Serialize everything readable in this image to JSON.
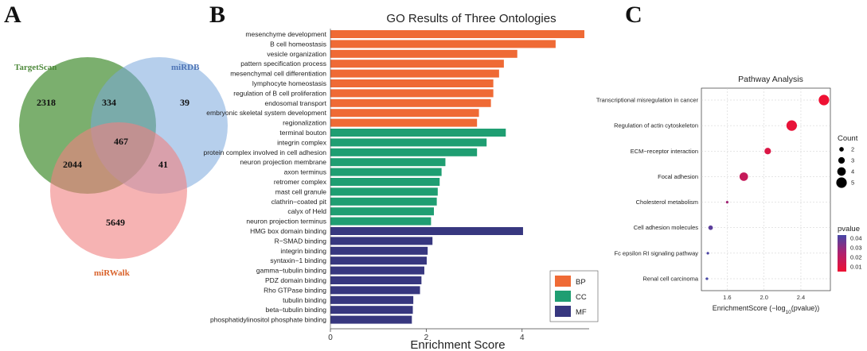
{
  "panels": {
    "a": "A",
    "b": "B",
    "c": "C"
  },
  "venn": {
    "sets": [
      {
        "name": "TargetScan",
        "color": "#5e9e4e"
      },
      {
        "name": "miRDB",
        "color": "#7aa8dc"
      },
      {
        "name": "miRWalk",
        "color": "#e8713a"
      }
    ],
    "regions": {
      "targetscan_only": "2318",
      "targetscan_mirdb": "334",
      "mirdb_only": "39",
      "all_three": "467",
      "targetscan_mirwalk": "2044",
      "mirdb_mirwalk": "41",
      "mirwalk_only": "5649"
    }
  },
  "chart_data": [
    {
      "type": "bar",
      "orientation": "horizontal",
      "title": "GO Results of Three Ontologies",
      "xlabel": "Enrichment Score",
      "ylabel": "",
      "xlim": [
        0,
        5.3
      ],
      "xticks": [
        0,
        2,
        4
      ],
      "legend": {
        "placement": "bottom-right",
        "entries": [
          "BP",
          "CC",
          "MF"
        ]
      },
      "colors": {
        "BP": "#ef6a35",
        "CC": "#1f9e72",
        "MF": "#37377f"
      },
      "categories": [
        "mesenchyme development",
        "B cell homeostasis",
        "vesicle organization",
        "pattern specification process",
        "mesenchymal cell differentiation",
        "lymphocyte homeostasis",
        "regulation of B cell proliferation",
        "endosomal transport",
        "embryonic skeletal system development",
        "regionalization",
        "terminal bouton",
        "integrin complex",
        "protein complex involved in cell adhesion",
        "neuron projection membrane",
        "axon terminus",
        "retromer complex",
        "mast cell granule",
        "clathrin−coated pit",
        "calyx of Held",
        "neuron projection terminus",
        "HMG box domain binding",
        "R−SMAD binding",
        "integrin binding",
        "syntaxin−1 binding",
        "gamma−tubulin binding",
        "PDZ domain binding",
        "Rho GTPase binding",
        "tubulin binding",
        "beta−tubulin binding",
        "phosphatidylinositol phosphate binding"
      ],
      "values": [
        5.3,
        4.7,
        3.9,
        3.62,
        3.52,
        3.4,
        3.4,
        3.35,
        3.1,
        3.06,
        3.66,
        3.26,
        3.06,
        2.4,
        2.32,
        2.28,
        2.24,
        2.22,
        2.16,
        2.1,
        4.02,
        2.13,
        2.03,
        2.01,
        1.96,
        1.9,
        1.87,
        1.73,
        1.72,
        1.7
      ],
      "groups": [
        "BP",
        "BP",
        "BP",
        "BP",
        "BP",
        "BP",
        "BP",
        "BP",
        "BP",
        "BP",
        "CC",
        "CC",
        "CC",
        "CC",
        "CC",
        "CC",
        "CC",
        "CC",
        "CC",
        "CC",
        "MF",
        "MF",
        "MF",
        "MF",
        "MF",
        "MF",
        "MF",
        "MF",
        "MF",
        "MF"
      ]
    },
    {
      "type": "scatter",
      "title": "Pathway Analysis",
      "xlabel_prefix": "EnrichmentScore (−log",
      "xlabel_sub": "10",
      "xlabel_suffix": "(pvalue))",
      "xlim": [
        1.32,
        2.72
      ],
      "xticks": [
        "1.6",
        "2.0",
        "2.4"
      ],
      "xtick_values": [
        1.6,
        2.0,
        2.4
      ],
      "grid": true,
      "categories": [
        "Transcriptional misregulation in cancer",
        "Regulation of actin cytoskeleton",
        "ECM−receptor interaction",
        "Focal adhesion",
        "Cholesterol metabolism",
        "Cell adhesion molecules",
        "Fc epsilon RI signaling pathway",
        "Renal cell carcinoma"
      ],
      "x": [
        2.65,
        2.3,
        2.04,
        1.78,
        1.6,
        1.42,
        1.39,
        1.38
      ],
      "count": [
        5,
        5,
        3,
        4,
        1,
        2,
        1,
        1
      ],
      "pvalue": [
        0.003,
        0.005,
        0.009,
        0.016,
        0.025,
        0.038,
        0.041,
        0.042
      ],
      "size_legend": {
        "title": "Count",
        "entries": [
          "2",
          "3",
          "4",
          "5"
        ],
        "values": [
          2,
          3,
          4,
          5
        ]
      },
      "color_legend": {
        "title": "pvalue",
        "entries": [
          "0.04",
          "0.03",
          "0.02",
          "0.01"
        ],
        "values": [
          0.04,
          0.03,
          0.02,
          0.01
        ],
        "low_color": "#ee1133",
        "high_color": "#4646a6"
      }
    }
  ]
}
